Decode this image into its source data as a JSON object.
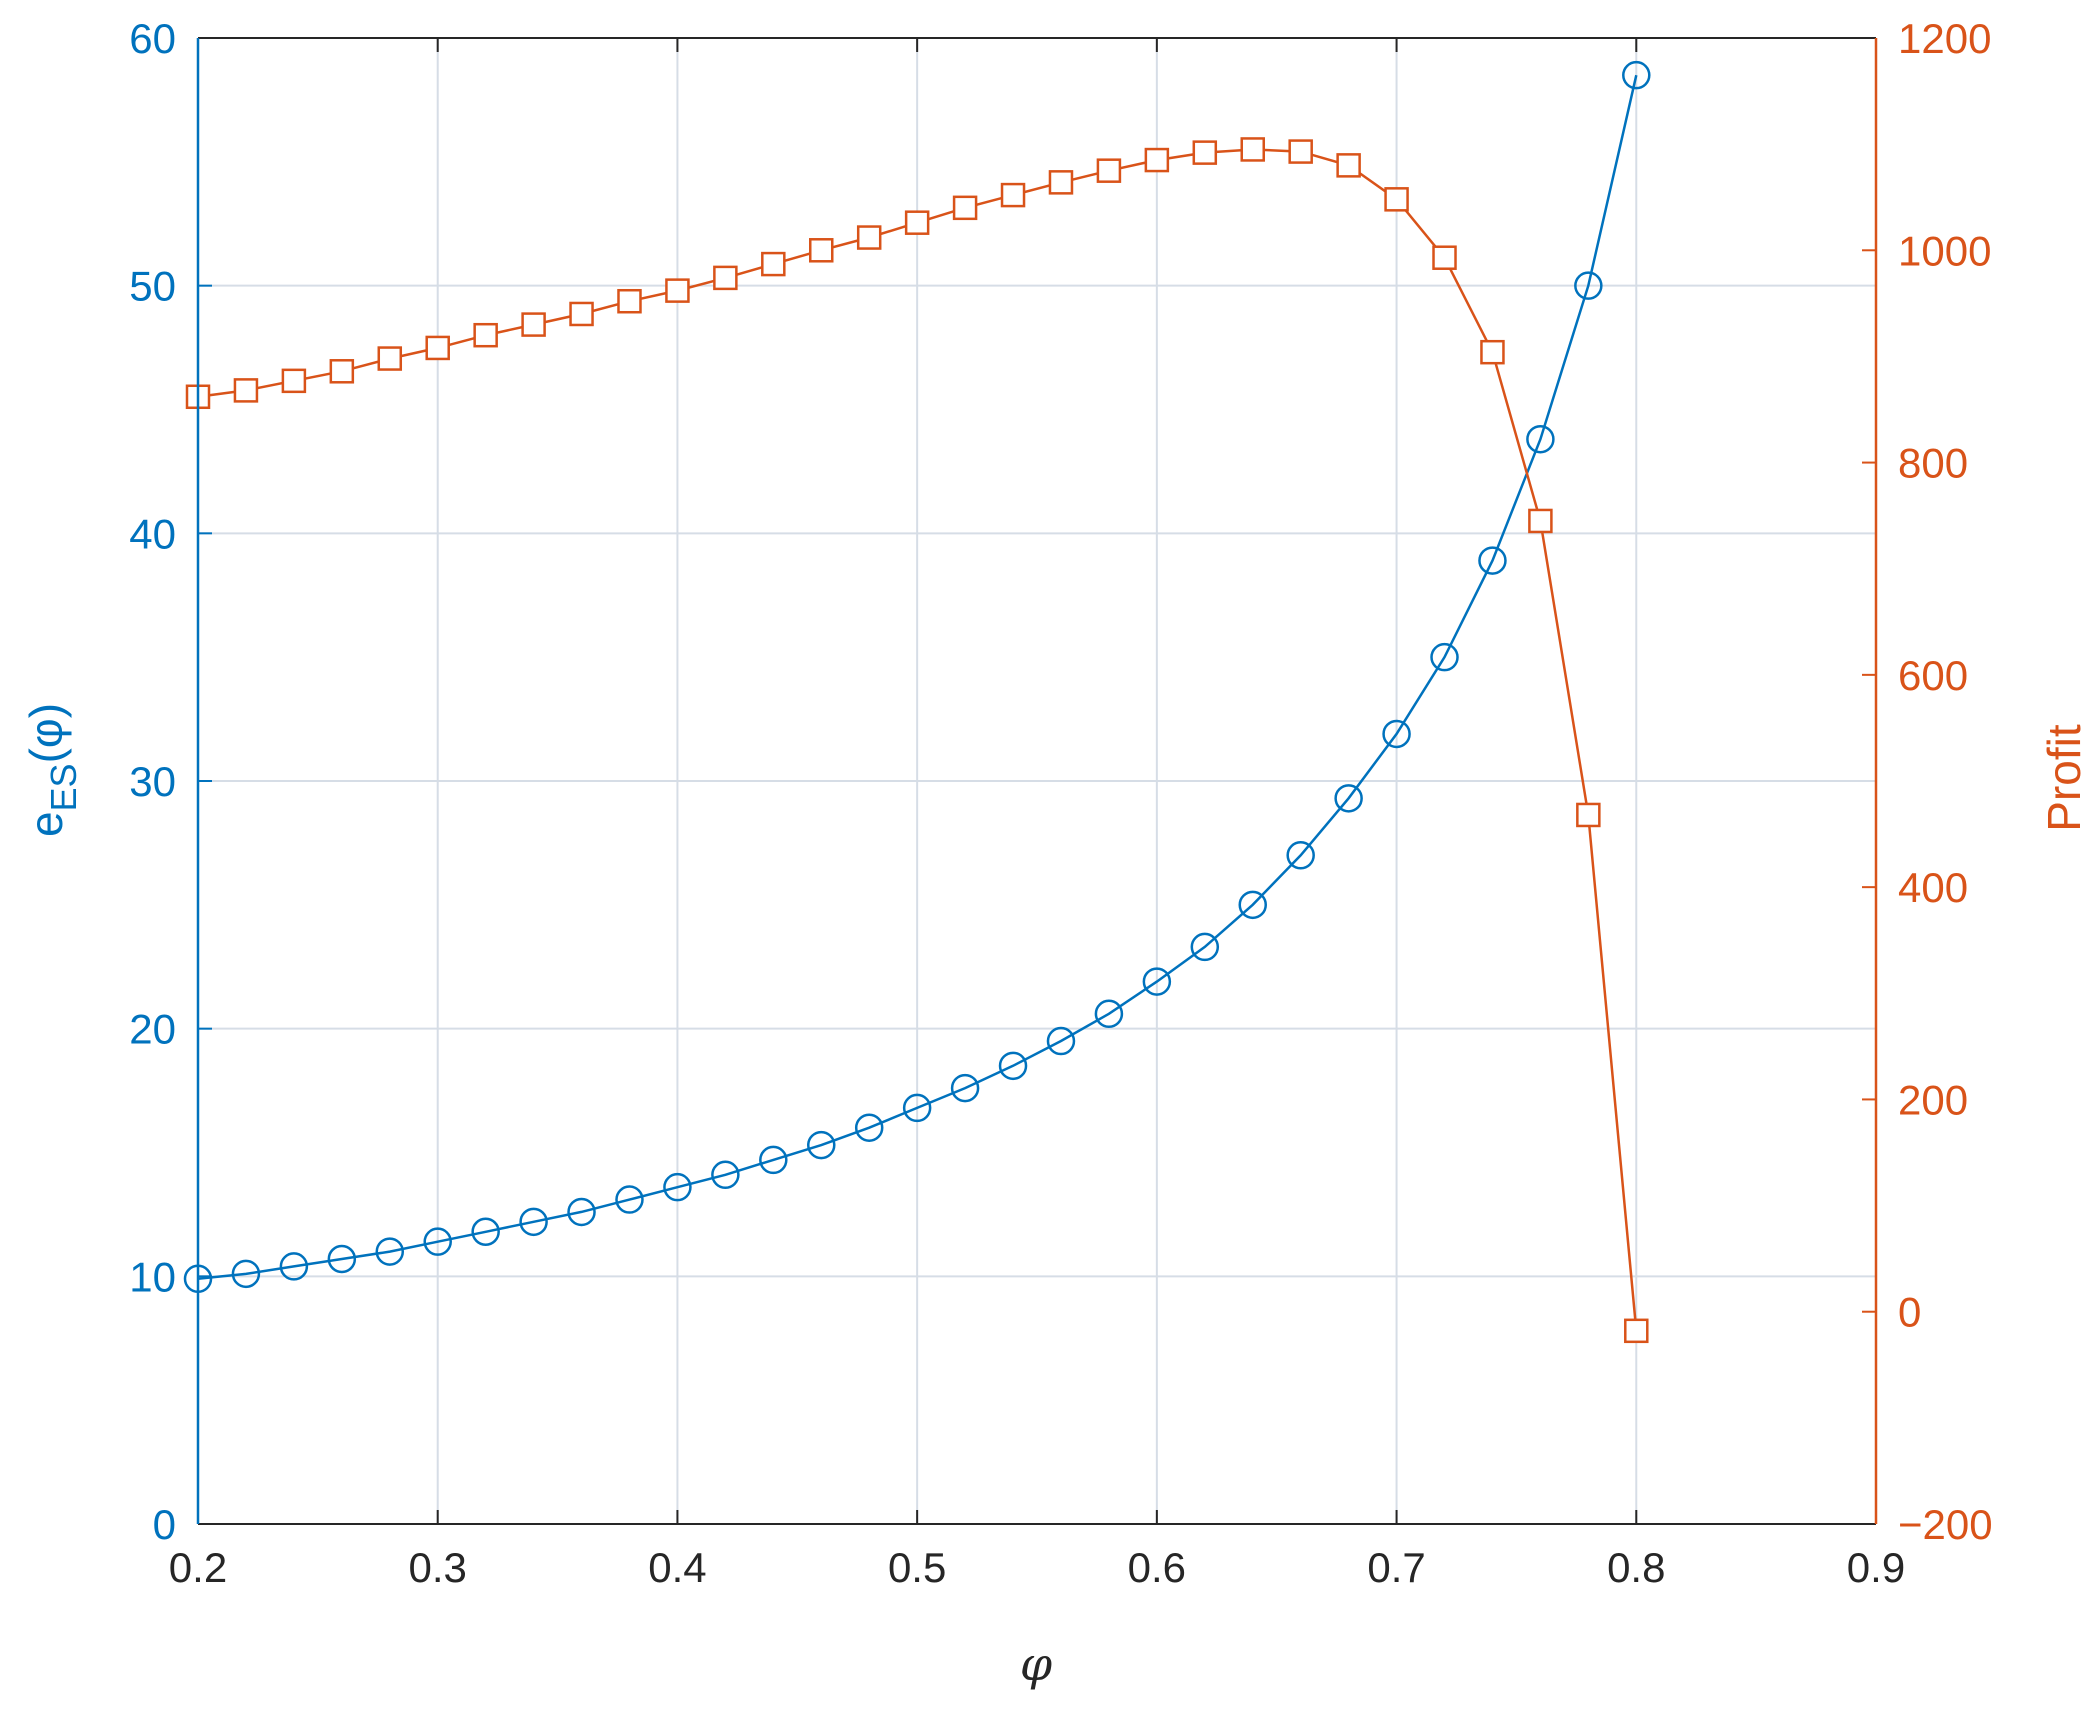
{
  "chart_data": {
    "type": "line",
    "xlabel": "φ",
    "xlim": [
      0.2,
      0.9
    ],
    "x_ticks": [
      "0.2",
      "0.3",
      "0.4",
      "0.5",
      "0.6",
      "0.7",
      "0.8",
      "0.9"
    ],
    "grid": true,
    "left_axis": {
      "label_main": "e",
      "label_sub": "ES",
      "label_tail": "(φ)",
      "ylim": [
        0,
        60
      ],
      "ticks": [
        "0",
        "10",
        "20",
        "30",
        "40",
        "50",
        "60"
      ],
      "color": "#0072BD"
    },
    "right_axis": {
      "label": "Profit",
      "ylim": [
        -200,
        1200
      ],
      "ticks": [
        "−200",
        "0",
        "200",
        "400",
        "600",
        "800",
        "1000",
        "1200"
      ],
      "color": "#D95319"
    },
    "x": [
      0.2,
      0.22,
      0.24,
      0.26,
      0.28,
      0.3,
      0.32,
      0.34,
      0.36,
      0.38,
      0.4,
      0.42,
      0.44,
      0.46,
      0.48,
      0.5,
      0.52,
      0.54,
      0.56,
      0.58,
      0.6,
      0.62,
      0.64,
      0.66,
      0.68,
      0.7,
      0.72,
      0.74,
      0.76,
      0.78,
      0.8
    ],
    "series": [
      {
        "axis": "left",
        "marker": "circle",
        "color": "#0072BD",
        "values": [
          9.9,
          10.1,
          10.4,
          10.7,
          11.0,
          11.4,
          11.8,
          12.2,
          12.6,
          13.1,
          13.6,
          14.1,
          14.7,
          15.3,
          16.0,
          16.8,
          17.6,
          18.5,
          19.5,
          20.6,
          21.9,
          23.3,
          25.0,
          27.0,
          29.3,
          31.9,
          35.0,
          38.9,
          43.8,
          50.0,
          58.5
        ]
      },
      {
        "axis": "right",
        "marker": "square",
        "color": "#D95319",
        "values": [
          862,
          868,
          877,
          886,
          898,
          908,
          920,
          930,
          940,
          952,
          962,
          974,
          987,
          1000,
          1012,
          1026,
          1040,
          1052,
          1064,
          1075,
          1085,
          1092,
          1095,
          1093,
          1080,
          1048,
          993,
          904,
          745,
          468,
          -18
        ]
      }
    ]
  }
}
